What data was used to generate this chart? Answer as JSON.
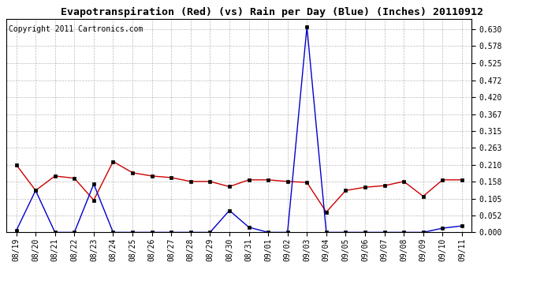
{
  "title": "Evapotranspiration (Red) (vs) Rain per Day (Blue) (Inches) 20110912",
  "copyright": "Copyright 2011 Cartronics.com",
  "labels": [
    "08/19",
    "08/20",
    "08/21",
    "08/22",
    "08/23",
    "08/24",
    "08/25",
    "08/26",
    "08/27",
    "08/28",
    "08/29",
    "08/30",
    "08/31",
    "09/01",
    "09/02",
    "09/03",
    "09/04",
    "09/05",
    "09/06",
    "09/07",
    "09/08",
    "09/09",
    "09/10",
    "09/11"
  ],
  "red_data": [
    0.21,
    0.13,
    0.175,
    0.168,
    0.1,
    0.22,
    0.185,
    0.175,
    0.17,
    0.158,
    0.158,
    0.142,
    0.163,
    0.163,
    0.158,
    0.155,
    0.063,
    0.13,
    0.14,
    0.145,
    0.158,
    0.112,
    0.163,
    0.163
  ],
  "blue_data": [
    0.005,
    0.13,
    0.0,
    0.0,
    0.15,
    0.0,
    0.0,
    0.0,
    0.0,
    0.0,
    0.0,
    0.068,
    0.016,
    0.0,
    0.0,
    0.638,
    0.0,
    0.0,
    0.0,
    0.0,
    0.0,
    0.0,
    0.013,
    0.02
  ],
  "ylim_min": 0.0,
  "ylim_max": 0.6615,
  "yticks": [
    0.0,
    0.052,
    0.105,
    0.158,
    0.21,
    0.263,
    0.315,
    0.367,
    0.42,
    0.472,
    0.525,
    0.578,
    0.63
  ],
  "red_color": "#cc0000",
  "blue_color": "#0000cc",
  "bg_color": "#ffffff",
  "grid_color": "#bbbbbb",
  "title_fontsize": 9.5,
  "copyright_fontsize": 7,
  "tick_fontsize": 7,
  "marker_size": 3
}
